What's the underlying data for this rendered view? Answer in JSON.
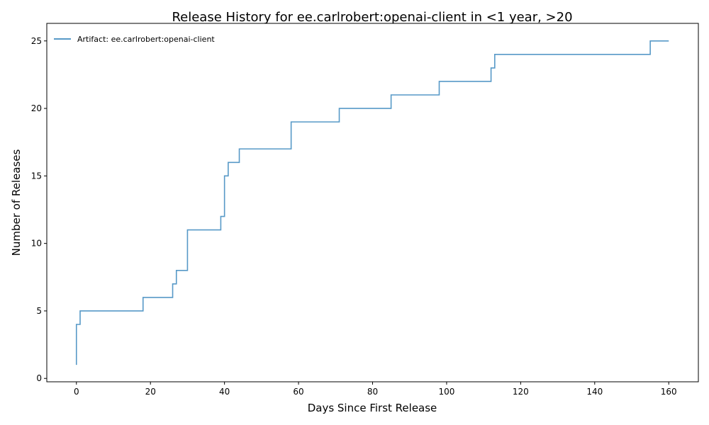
{
  "chart_data": {
    "type": "line",
    "step": "post",
    "title": "Release History for ee.carlrobert:openai-client in <1 year, >20",
    "xlabel": "Days Since First Release",
    "ylabel": "Number of Releases",
    "xlim": [
      -8,
      168
    ],
    "ylim": [
      -0.25,
      26.3
    ],
    "xticks": [
      0,
      20,
      40,
      60,
      80,
      100,
      120,
      140,
      160
    ],
    "yticks": [
      0,
      5,
      10,
      15,
      20,
      25
    ],
    "grid": false,
    "legend_position": "top-left",
    "series": [
      {
        "name": "Artifact: ee.carlrobert:openai-client",
        "color": "#1f77b4",
        "x": [
          0,
          0,
          1,
          18,
          26,
          27,
          30,
          39,
          40,
          41,
          44,
          58,
          71,
          85,
          98,
          112,
          113,
          155,
          160
        ],
        "y": [
          1,
          4,
          5,
          6,
          7,
          8,
          11,
          12,
          15,
          16,
          17,
          19,
          20,
          21,
          22,
          23,
          24,
          25,
          25
        ]
      }
    ]
  }
}
